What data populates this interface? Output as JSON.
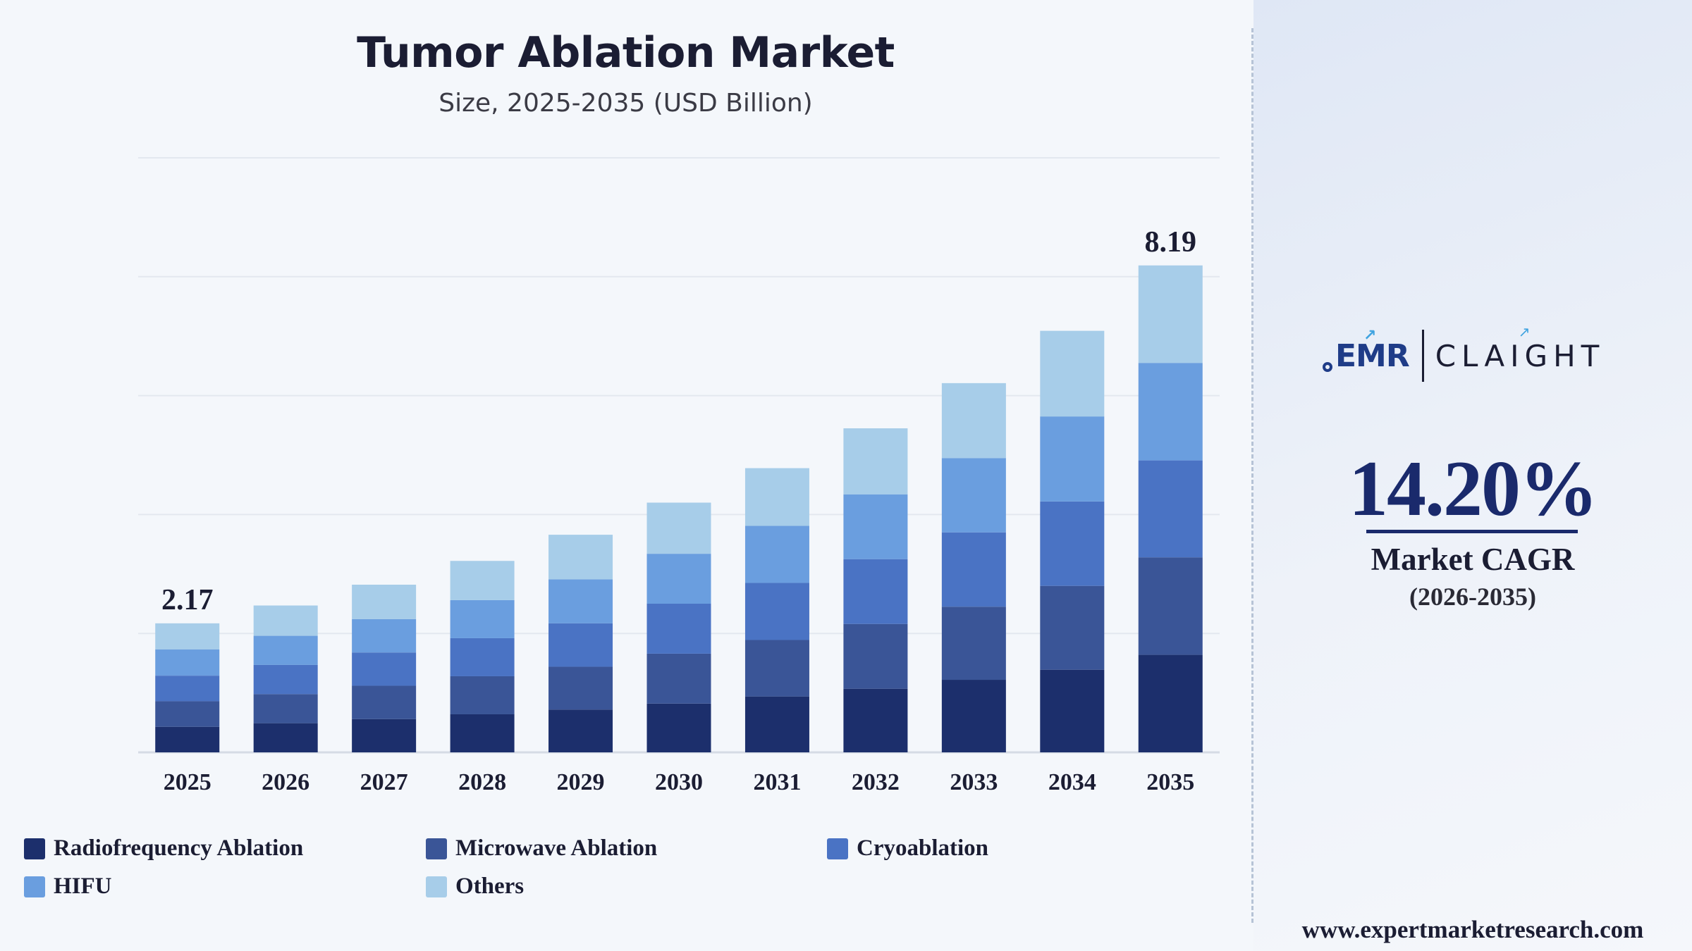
{
  "chart_data": {
    "type": "bar",
    "stacked": true,
    "title": "Tumor Ablation Market",
    "subtitle": "Size, 2025-2035 (USD Billion)",
    "categories": [
      "2025",
      "2026",
      "2027",
      "2028",
      "2029",
      "2030",
      "2031",
      "2032",
      "2033",
      "2034",
      "2035"
    ],
    "series": [
      {
        "name": "Radiofrequency Ablation",
        "color": "#1c2f6c",
        "values": [
          0.43,
          0.49,
          0.56,
          0.64,
          0.72,
          0.82,
          0.94,
          1.07,
          1.22,
          1.39,
          1.64
        ]
      },
      {
        "name": "Microwave Ablation",
        "color": "#3a5597",
        "values": [
          0.43,
          0.49,
          0.56,
          0.64,
          0.72,
          0.84,
          0.95,
          1.09,
          1.23,
          1.41,
          1.64
        ]
      },
      {
        "name": "Cryoablation",
        "color": "#4a73c4",
        "values": [
          0.43,
          0.49,
          0.56,
          0.64,
          0.73,
          0.84,
          0.96,
          1.09,
          1.25,
          1.42,
          1.63
        ]
      },
      {
        "name": "HIFU",
        "color": "#6a9edf",
        "values": [
          0.44,
          0.49,
          0.56,
          0.64,
          0.74,
          0.84,
          0.96,
          1.09,
          1.25,
          1.43,
          1.64
        ]
      },
      {
        "name": "Others",
        "color": "#a7cde9",
        "values": [
          0.44,
          0.51,
          0.58,
          0.66,
          0.75,
          0.86,
          0.97,
          1.11,
          1.26,
          1.44,
          1.64
        ]
      }
    ],
    "totals": [
      2.17,
      2.47,
      2.82,
      3.22,
      3.66,
      4.2,
      4.78,
      5.45,
      6.21,
      7.09,
      8.19
    ],
    "data_labels": [
      {
        "index": 0,
        "text": "2.17"
      },
      {
        "index": 10,
        "text": "8.19"
      }
    ],
    "ylim": [
      0,
      10
    ],
    "grid": true,
    "legend_position": "bottom",
    "xlabel": "",
    "ylabel": ""
  },
  "side_panel": {
    "logo_left": "EMR",
    "logo_right": "CLAIGHT",
    "cagr_value": "14.20%",
    "cagr_label": "Market CAGR",
    "cagr_period": "(2026-2035)",
    "source_url": "www.expertmarketresearch.com"
  },
  "colors": {
    "title": "#1b1d33",
    "accent": "#1a2a6c",
    "background": "#f4f7fb"
  }
}
